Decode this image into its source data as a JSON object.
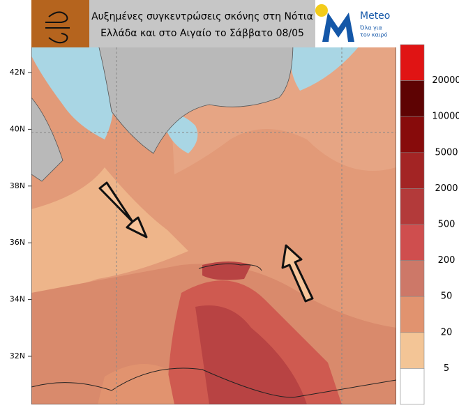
{
  "header": {
    "title_lines": [
      "Αυξημένες συγκεντρώσεις σκόνης στη Νότια",
      "Ελλάδα και στο Αιγαίο το Σάββατο 08/05"
    ],
    "logo": {
      "name": "Meteo",
      "tagline_lines": [
        "Όλα για",
        "τον καιρό"
      ]
    }
  },
  "map": {
    "latitude_labels": [
      "42N",
      "40N",
      "38N",
      "36N",
      "34N",
      "32N"
    ]
  },
  "colorbar": {
    "colors": [
      "#e01414",
      "#5e0303",
      "#870b0b",
      "#a32424",
      "#b33a3a",
      "#cf4e4e",
      "#cd7868",
      "#e1936f",
      "#f3c596",
      "#ffffff"
    ],
    "labels": [
      "20000",
      "10000",
      "5000",
      "2000",
      "500",
      "200",
      "50",
      "20",
      "5"
    ]
  }
}
